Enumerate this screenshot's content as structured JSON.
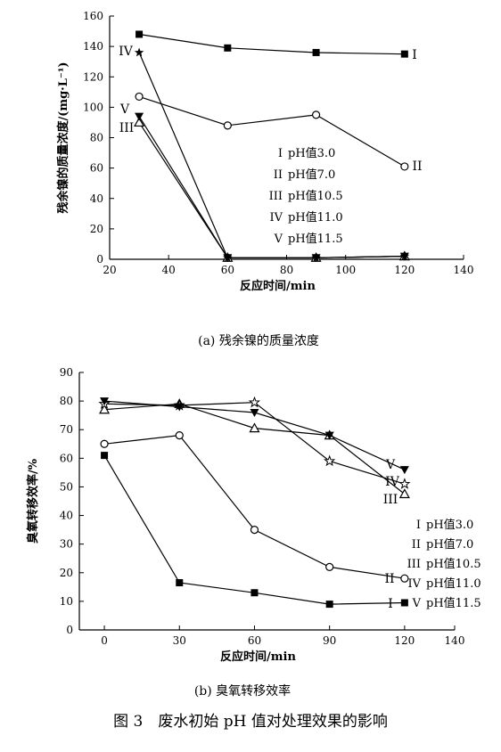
{
  "chart_data": [
    {
      "type": "line",
      "caption": "(a) 残余镍的质量浓度",
      "xlabel": "反应时间/min",
      "ylabel": "残余镍的质量浓度/(mg·L⁻¹)",
      "xlim": [
        20,
        140
      ],
      "ylim": [
        0,
        160
      ],
      "xticks": [
        20,
        40,
        60,
        80,
        100,
        120,
        140
      ],
      "yticks": [
        0,
        20,
        40,
        60,
        80,
        100,
        120,
        140,
        160
      ],
      "grid": false,
      "legend_position": "center-right",
      "series": [
        {
          "name": "pH值3.0",
          "label": "I",
          "marker": "square-filled",
          "x": [
            30,
            60,
            90,
            120
          ],
          "y": [
            148,
            139,
            136,
            135
          ]
        },
        {
          "name": "pH值7.0",
          "label": "II",
          "marker": "circle-open",
          "x": [
            30,
            60,
            90,
            120
          ],
          "y": [
            107,
            88,
            95,
            61
          ]
        },
        {
          "name": "pH值10.5",
          "label": "III",
          "marker": "triangle-open",
          "x": [
            30,
            60,
            90,
            120
          ],
          "y": [
            90,
            1,
            1,
            2
          ]
        },
        {
          "name": "pH值11.0",
          "label": "IV",
          "marker": "star-filled",
          "x": [
            30,
            60,
            90,
            120
          ],
          "y": [
            136,
            1,
            1,
            2
          ]
        },
        {
          "name": "pH值11.5",
          "label": "V",
          "marker": "triangle-down-filled",
          "x": [
            30,
            60,
            90,
            120
          ],
          "y": [
            94,
            1,
            1,
            2
          ]
        }
      ],
      "series_label_texts": [
        "IV",
        "V",
        "III",
        "I",
        "II"
      ]
    },
    {
      "type": "line",
      "caption": "(b) 臭氧转移效率",
      "xlabel": "反应时间/min",
      "ylabel": "臭氧转移效率/%",
      "xlim": [
        -10,
        140
      ],
      "ylim": [
        0,
        90
      ],
      "xticks": [
        0,
        30,
        60,
        90,
        120
      ],
      "extra_xtick": 140,
      "yticks": [
        0,
        10,
        20,
        30,
        40,
        50,
        60,
        70,
        80,
        90
      ],
      "grid": false,
      "legend_position": "right",
      "series": [
        {
          "name": "pH值3.0",
          "label": "I",
          "marker": "square-filled",
          "x": [
            0,
            30,
            60,
            90,
            120
          ],
          "y": [
            61,
            16.5,
            13,
            9,
            9.5
          ]
        },
        {
          "name": "pH值7.0",
          "label": "II",
          "marker": "circle-open",
          "x": [
            0,
            30,
            60,
            90,
            120
          ],
          "y": [
            65,
            68,
            35,
            22,
            18
          ]
        },
        {
          "name": "pH值10.5",
          "label": "III",
          "marker": "triangle-open",
          "x": [
            0,
            30,
            60,
            90,
            120
          ],
          "y": [
            77,
            79,
            70.5,
            68,
            47.5
          ]
        },
        {
          "name": "pH值11.0",
          "label": "IV",
          "marker": "star-open",
          "x": [
            0,
            30,
            60,
            90,
            120
          ],
          "y": [
            79,
            78.5,
            79.5,
            59,
            51
          ]
        },
        {
          "name": "pH值11.5",
          "label": "V",
          "marker": "triangle-down-filled",
          "x": [
            0,
            30,
            60,
            90,
            120
          ],
          "y": [
            80,
            78,
            76,
            68,
            56
          ]
        }
      ],
      "series_label_texts": [
        "V",
        "IV",
        "III",
        "II",
        "I"
      ]
    }
  ],
  "figure_caption": "图 3　废水初始 pH 值对处理效果的影响"
}
